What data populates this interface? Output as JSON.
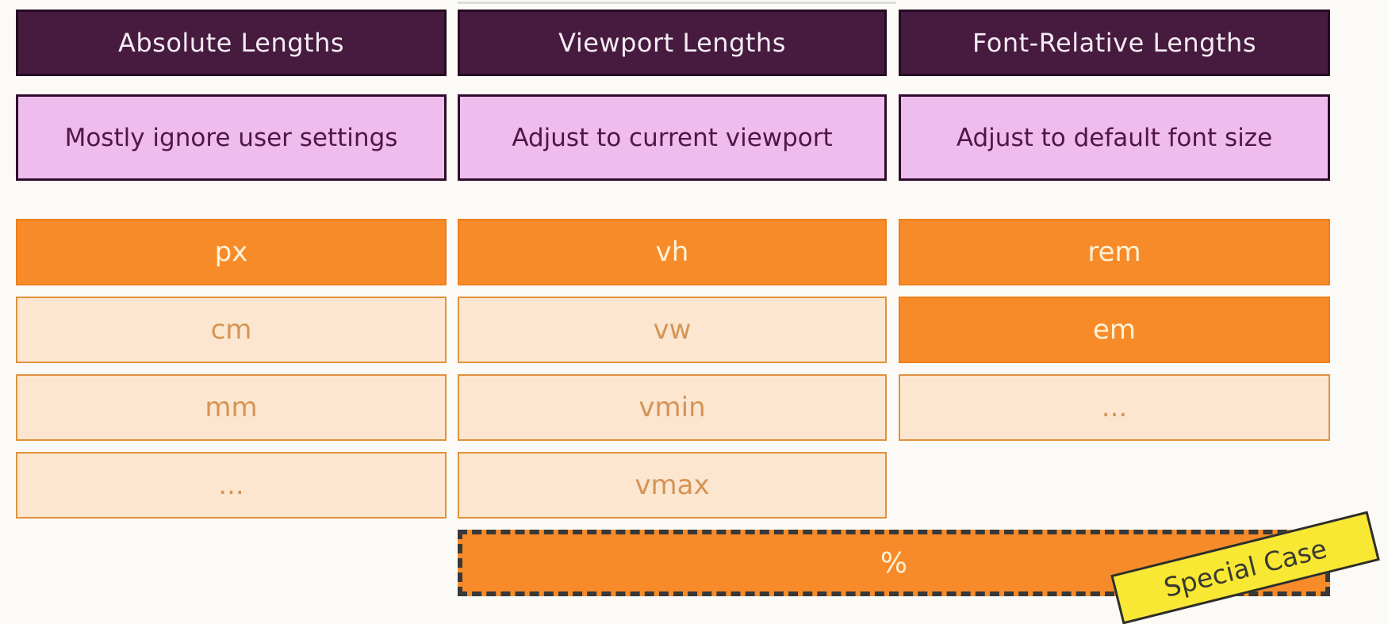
{
  "title": "CSS length units comparison diagram",
  "colors": {
    "background": "#fcfaf7",
    "header_bg": "#471b40",
    "header_text": "#f4ecf3",
    "description_bg": "#efbded",
    "description_border": "#2f0c2b",
    "description_text": "#4f1647",
    "unit_solid_bg": "#f78b29",
    "unit_solid_text": "#fdf2d7",
    "unit_light_bg": "#fce6cf",
    "unit_light_border": "#df923e",
    "unit_light_text": "#d59457",
    "special_dash_border": "#383838",
    "sticker_bg": "#f8e834",
    "sticker_border": "#2e2e2e",
    "sticker_text": "#3a3a30"
  },
  "columns": [
    {
      "header": "Absolute Lengths",
      "description": "Mostly ignore user settings",
      "units": [
        {
          "label": "px",
          "emphasis": "solid"
        },
        {
          "label": "cm",
          "emphasis": "light"
        },
        {
          "label": "mm",
          "emphasis": "light"
        },
        {
          "label": "...",
          "emphasis": "light"
        }
      ]
    },
    {
      "header": "Viewport Lengths",
      "description": "Adjust to current viewport",
      "units": [
        {
          "label": "vh",
          "emphasis": "solid"
        },
        {
          "label": "vw",
          "emphasis": "light"
        },
        {
          "label": "vmin",
          "emphasis": "light"
        },
        {
          "label": "vmax",
          "emphasis": "light"
        }
      ]
    },
    {
      "header": "Font-Relative Lengths",
      "description": "Adjust to default font size",
      "units": [
        {
          "label": "rem",
          "emphasis": "solid"
        },
        {
          "label": "em",
          "emphasis": "solid"
        },
        {
          "label": "...",
          "emphasis": "light"
        }
      ]
    }
  ],
  "special": {
    "label": "%",
    "sticker": "Special Case"
  }
}
